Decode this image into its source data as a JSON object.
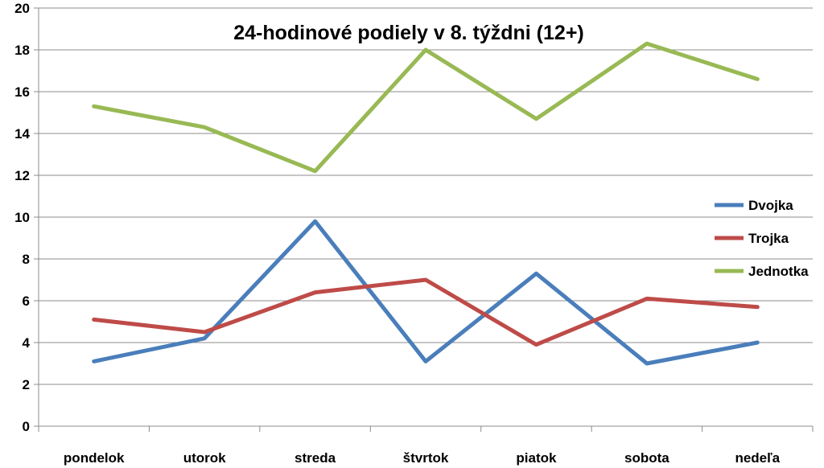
{
  "chart_data": {
    "type": "line",
    "title": "24-hodinové podiely v 8. týždni (12+)",
    "categories": [
      "pondelok",
      "utorok",
      "streda",
      "štvrtok",
      "piatok",
      "sobota",
      "nedeľa"
    ],
    "ylim": [
      0,
      20
    ],
    "yticks": [
      "0",
      "2",
      "4",
      "6",
      "8",
      "10",
      "12",
      "14",
      "16",
      "18",
      "20"
    ],
    "grid": true,
    "legend_position": "right",
    "series": [
      {
        "name": "Dvojka",
        "color": "#4a7ebb",
        "values": [
          3.1,
          4.2,
          9.8,
          3.1,
          7.3,
          3.0,
          4.0
        ]
      },
      {
        "name": "Trojka",
        "color": "#be4b48",
        "values": [
          5.1,
          4.5,
          6.4,
          7.0,
          3.9,
          6.1,
          5.7
        ]
      },
      {
        "name": "Jednotka",
        "color": "#98b954",
        "values": [
          15.3,
          14.3,
          12.2,
          18.0,
          14.7,
          18.3,
          16.6
        ]
      }
    ]
  }
}
